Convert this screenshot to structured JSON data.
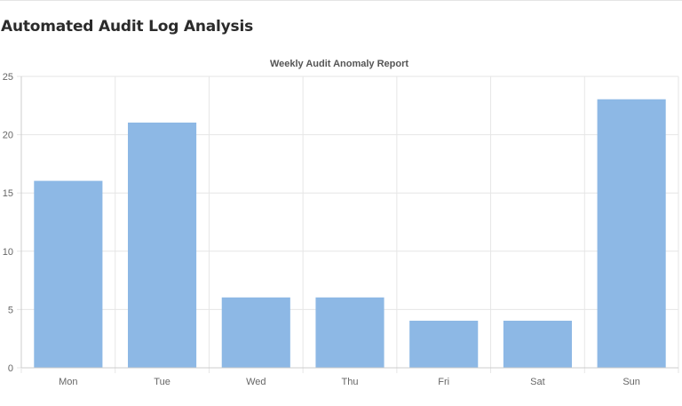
{
  "page": {
    "title": "Automated Audit Log Analysis"
  },
  "chart_data": {
    "type": "bar",
    "title": "Weekly Audit Anomaly Report",
    "categories": [
      "Mon",
      "Tue",
      "Wed",
      "Thu",
      "Fri",
      "Sat",
      "Sun"
    ],
    "series": [
      {
        "values": [
          16,
          21,
          6,
          6,
          4,
          4,
          23
        ]
      }
    ],
    "ylim": [
      0,
      25
    ],
    "yticks": [
      0,
      5,
      10,
      15,
      20,
      25
    ],
    "xlabel": "",
    "ylabel": "",
    "grid": true,
    "legend": "none",
    "colors": {
      "bar_fill": "#8db8e5",
      "bar_stroke": "#8db8e5",
      "grid": "#e6e6e6",
      "axis": "#cccccc",
      "tick_text": "#666666",
      "title_text": "#555555"
    }
  }
}
